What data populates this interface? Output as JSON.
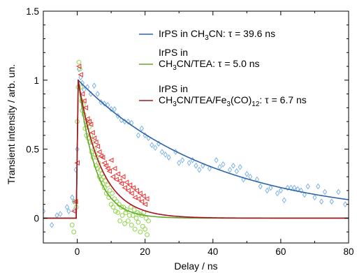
{
  "chart_data": {
    "type": "scatter",
    "xlabel": "Delay / ns",
    "ylabel": "Transient intensity / arb. un.",
    "xlim": [
      -10,
      80
    ],
    "ylim": [
      -0.18,
      1.5
    ],
    "x_ticks": [
      {
        "value": 0,
        "label": "0"
      },
      {
        "value": 20,
        "label": "20"
      },
      {
        "value": 40,
        "label": "40"
      },
      {
        "value": 60,
        "label": "60"
      },
      {
        "value": 80,
        "label": "80"
      }
    ],
    "y_ticks": [
      {
        "value": 0,
        "label": "0"
      },
      {
        "value": 0.5,
        "label": "0.5"
      },
      {
        "value": 1,
        "label": "1"
      },
      {
        "value": 1.5,
        "label": "1.5"
      }
    ],
    "grid": false,
    "legend_position": "top-right",
    "series": [
      {
        "legend": {
          "lines": [
            {
              "parts": [
                {
                  "t": "IrPS in CH"
                },
                {
                  "t": "3",
                  "sub": true
                },
                {
                  "t": "CN: τ = 39.6 ns"
                }
              ]
            }
          ]
        },
        "line_color": "#2e64a8",
        "marker_color": "#7db4e6",
        "marker": "diamond",
        "tau": 39.6,
        "points": [
          [
            -10,
            0.05
          ],
          [
            -7.5,
            -0.05
          ],
          [
            -6,
            0.02
          ],
          [
            -5,
            0.03
          ],
          [
            -3,
            0.08
          ],
          [
            -2.5,
            0.05
          ],
          [
            -1.5,
            0.15
          ],
          [
            -1,
            0.12
          ],
          [
            -0.8,
            0.06
          ],
          [
            -0.4,
            0.35
          ],
          [
            0,
            0.5
          ],
          [
            0.5,
            1.08
          ],
          [
            1,
            1.02
          ],
          [
            1.5,
            0.98
          ],
          [
            2,
            0.93
          ],
          [
            3,
            0.95
          ],
          [
            4,
            0.9
          ],
          [
            5,
            0.96
          ],
          [
            6,
            0.9
          ],
          [
            7,
            0.84
          ],
          [
            8,
            0.83
          ],
          [
            9,
            0.82
          ],
          [
            10,
            0.79
          ],
          [
            11,
            0.79
          ],
          [
            12,
            0.74
          ],
          [
            13,
            0.71
          ],
          [
            14,
            0.7
          ],
          [
            15,
            0.7
          ],
          [
            16,
            0.69
          ],
          [
            18,
            0.6
          ],
          [
            19,
            0.65
          ],
          [
            20,
            0.6
          ],
          [
            21,
            0.58
          ],
          [
            22,
            0.53
          ],
          [
            23,
            0.51
          ],
          [
            24,
            0.54
          ],
          [
            25,
            0.48
          ],
          [
            26,
            0.46
          ],
          [
            27,
            0.44
          ],
          [
            29,
            0.48
          ],
          [
            30,
            0.4
          ],
          [
            31,
            0.42
          ],
          [
            33,
            0.4
          ],
          [
            34,
            0.42
          ],
          [
            35,
            0.38
          ],
          [
            36,
            0.35
          ],
          [
            37,
            0.38
          ],
          [
            39,
            0.36
          ],
          [
            41,
            0.42
          ],
          [
            42,
            0.37
          ],
          [
            43,
            0.39
          ],
          [
            45,
            0.35
          ],
          [
            46,
            0.38
          ],
          [
            47,
            0.34
          ],
          [
            48,
            0.37
          ],
          [
            49,
            0.28
          ],
          [
            50,
            0.32
          ],
          [
            51,
            0.3
          ],
          [
            53,
            0.28
          ],
          [
            54,
            0.23
          ],
          [
            56,
            0.2
          ],
          [
            57,
            0.22
          ],
          [
            59,
            0.18
          ],
          [
            60,
            0.2
          ],
          [
            61,
            0.13
          ],
          [
            62,
            0.22
          ],
          [
            63,
            0.22
          ],
          [
            64,
            0.22
          ],
          [
            65,
            0.21
          ],
          [
            66,
            0.2
          ],
          [
            67,
            0.17
          ],
          [
            68,
            0.23
          ],
          [
            70,
            0.15
          ],
          [
            71,
            0.23
          ],
          [
            72,
            0.12
          ],
          [
            73,
            0.19
          ],
          [
            75,
            0.12
          ],
          [
            77,
            0.19
          ],
          [
            79,
            0.1
          ]
        ]
      },
      {
        "legend": {
          "lines": [
            {
              "parts": [
                {
                  "t": "IrPS in"
                }
              ]
            },
            {
              "parts": [
                {
                  "t": "CH"
                },
                {
                  "t": "3",
                  "sub": true
                },
                {
                  "t": "CN/TEA: τ = 5.0 ns"
                }
              ]
            }
          ]
        },
        "line_color": "#62a82c",
        "marker_color": "#8fd44a",
        "marker": "circle",
        "tau": 5.0,
        "points": [
          [
            -1.5,
            -0.05
          ],
          [
            -1,
            -0.1
          ],
          [
            -0.6,
            0.12
          ],
          [
            -0.3,
            0.08
          ],
          [
            0,
            0.7
          ],
          [
            0.3,
            0.95
          ],
          [
            0.5,
            1.13
          ],
          [
            0.8,
            1.08
          ],
          [
            1,
            0.95
          ],
          [
            1.3,
            0.85
          ],
          [
            1.5,
            0.78
          ],
          [
            1.8,
            0.82
          ],
          [
            2,
            0.75
          ],
          [
            2.3,
            0.65
          ],
          [
            2.5,
            0.7
          ],
          [
            2.7,
            0.6
          ],
          [
            3,
            0.68
          ],
          [
            3.2,
            0.58
          ],
          [
            3.5,
            0.66
          ],
          [
            3.7,
            0.55
          ],
          [
            4,
            0.6
          ],
          [
            4.2,
            0.48
          ],
          [
            4.5,
            0.55
          ],
          [
            4.7,
            0.44
          ],
          [
            5,
            0.5
          ],
          [
            5.3,
            0.46
          ],
          [
            5.5,
            0.38
          ],
          [
            5.8,
            0.44
          ],
          [
            6,
            0.36
          ],
          [
            6.3,
            0.4
          ],
          [
            6.5,
            0.3
          ],
          [
            6.8,
            0.35
          ],
          [
            7,
            0.28
          ],
          [
            7.3,
            0.32
          ],
          [
            7.5,
            0.25
          ],
          [
            7.8,
            0.3
          ],
          [
            8,
            0.22
          ],
          [
            8.3,
            0.27
          ],
          [
            8.6,
            0.18
          ],
          [
            9,
            0.24
          ],
          [
            9.3,
            0.15
          ],
          [
            9.6,
            0.2
          ],
          [
            10,
            0.1
          ],
          [
            10.3,
            0.18
          ],
          [
            10.6,
            0.08
          ],
          [
            11,
            0.14
          ],
          [
            11.3,
            0.05
          ],
          [
            11.6,
            0.12
          ],
          [
            12,
            0.04
          ],
          [
            12.3,
            0.1
          ],
          [
            12.6,
            -0.02
          ],
          [
            13,
            0.08
          ],
          [
            13.3,
            0.02
          ],
          [
            13.6,
            0.08
          ],
          [
            14,
            -0.04
          ],
          [
            14.3,
            0.04
          ],
          [
            14.6,
            0.06
          ],
          [
            15,
            -0.02
          ],
          [
            15.4,
            0.02
          ],
          [
            15.8,
            0.08
          ],
          [
            16,
            -0.05
          ],
          [
            16.4,
            0.02
          ],
          [
            16.8,
            0.06
          ],
          [
            17,
            -0.08
          ],
          [
            17.4,
            0.0
          ],
          [
            17.8,
            0.04
          ],
          [
            18,
            -0.03
          ],
          [
            18.3,
            0.03
          ],
          [
            18.6,
            -0.1
          ],
          [
            19,
            0.02
          ],
          [
            19.3,
            -0.06
          ],
          [
            19.6,
            0.04
          ],
          [
            20,
            -0.08
          ],
          [
            20.3,
            0.0
          ],
          [
            20.6,
            -0.12
          ],
          [
            21,
            -0.02
          ]
        ]
      },
      {
        "legend": {
          "lines": [
            {
              "parts": [
                {
                  "t": "IrPS in"
                }
              ]
            },
            {
              "parts": [
                {
                  "t": "CH"
                },
                {
                  "t": "3",
                  "sub": true
                },
                {
                  "t": "CN/TEA/Fe"
                },
                {
                  "t": "3",
                  "sub": true
                },
                {
                  "t": "(CO)"
                },
                {
                  "t": "12",
                  "sub": true
                },
                {
                  "t": ": τ = 6.7 ns"
                }
              ]
            }
          ]
        },
        "line_color": "#a8121e",
        "marker_color": "#ee2e2e",
        "marker": "triangle-left",
        "tau": 6.7,
        "points": [
          [
            -1,
            0.05
          ],
          [
            -0.5,
            0.12
          ],
          [
            0,
            0.4
          ],
          [
            0.5,
            1.1
          ],
          [
            1,
            1.04
          ],
          [
            1.5,
            0.9
          ],
          [
            2,
            0.85
          ],
          [
            2.5,
            0.8
          ],
          [
            3,
            0.72
          ],
          [
            3.5,
            0.7
          ],
          [
            4,
            0.68
          ],
          [
            4.5,
            0.62
          ],
          [
            5,
            0.58
          ],
          [
            5.5,
            0.55
          ],
          [
            6,
            0.52
          ],
          [
            6.5,
            0.48
          ],
          [
            7,
            0.45
          ],
          [
            7.5,
            0.44
          ],
          [
            8,
            0.4
          ],
          [
            8.5,
            0.38
          ],
          [
            9,
            0.36
          ],
          [
            9.5,
            0.34
          ],
          [
            10,
            0.42
          ],
          [
            10.5,
            0.3
          ],
          [
            11,
            0.36
          ],
          [
            11.5,
            0.28
          ],
          [
            12,
            0.32
          ],
          [
            12.5,
            0.27
          ],
          [
            13,
            0.25
          ],
          [
            13.5,
            0.3
          ],
          [
            14,
            0.22
          ],
          [
            14.5,
            0.26
          ],
          [
            15,
            0.2
          ],
          [
            15.5,
            0.24
          ],
          [
            16,
            0.18
          ],
          [
            16.5,
            0.22
          ],
          [
            17,
            0.15
          ],
          [
            17.5,
            0.2
          ],
          [
            18,
            0.14
          ],
          [
            18.5,
            0.18
          ],
          [
            19,
            0.12
          ],
          [
            19.5,
            0.16
          ],
          [
            20,
            0.1
          ],
          [
            20.5,
            0.14
          ]
        ]
      }
    ]
  }
}
